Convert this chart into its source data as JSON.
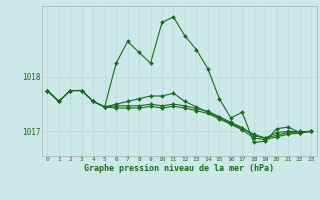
{
  "background_color": "#cce8e8",
  "grid_color_v": "#b8d8d8",
  "grid_color_h": "#b8d8d8",
  "line_color": "#1a6b1a",
  "xlabel": "Graphe pression niveau de la mer (hPa)",
  "xlim": [
    -0.5,
    23.5
  ],
  "ylim": [
    1016.55,
    1019.3
  ],
  "yticks": [
    1017.0,
    1018.0
  ],
  "xticks": [
    0,
    1,
    2,
    3,
    4,
    5,
    6,
    7,
    8,
    9,
    10,
    11,
    12,
    13,
    14,
    15,
    16,
    17,
    18,
    19,
    20,
    21,
    22,
    23
  ],
  "series": [
    [
      1017.75,
      1017.55,
      1017.75,
      1017.75,
      1017.55,
      1017.45,
      1018.25,
      1018.65,
      1018.45,
      1018.25,
      1019.0,
      1019.1,
      1018.75,
      1018.5,
      1018.15,
      1017.6,
      1017.25,
      1017.35,
      1016.8,
      1016.82,
      1017.05,
      1017.08,
      1016.98,
      1017.0
    ],
    [
      1017.75,
      1017.55,
      1017.75,
      1017.75,
      1017.55,
      1017.45,
      1017.5,
      1017.55,
      1017.6,
      1017.65,
      1017.65,
      1017.7,
      1017.55,
      1017.45,
      1017.35,
      1017.25,
      1017.15,
      1017.05,
      1016.95,
      1016.88,
      1016.98,
      1017.0,
      1017.0,
      1017.0
    ],
    [
      1017.75,
      1017.55,
      1017.75,
      1017.75,
      1017.55,
      1017.45,
      1017.47,
      1017.47,
      1017.47,
      1017.5,
      1017.47,
      1017.5,
      1017.47,
      1017.42,
      1017.37,
      1017.27,
      1017.17,
      1017.07,
      1016.92,
      1016.88,
      1016.93,
      1016.98,
      1016.99,
      1017.0
    ],
    [
      1017.75,
      1017.55,
      1017.75,
      1017.75,
      1017.55,
      1017.45,
      1017.43,
      1017.43,
      1017.43,
      1017.46,
      1017.43,
      1017.46,
      1017.43,
      1017.38,
      1017.33,
      1017.23,
      1017.13,
      1017.03,
      1016.88,
      1016.85,
      1016.9,
      1016.95,
      1016.97,
      1017.0
    ]
  ]
}
